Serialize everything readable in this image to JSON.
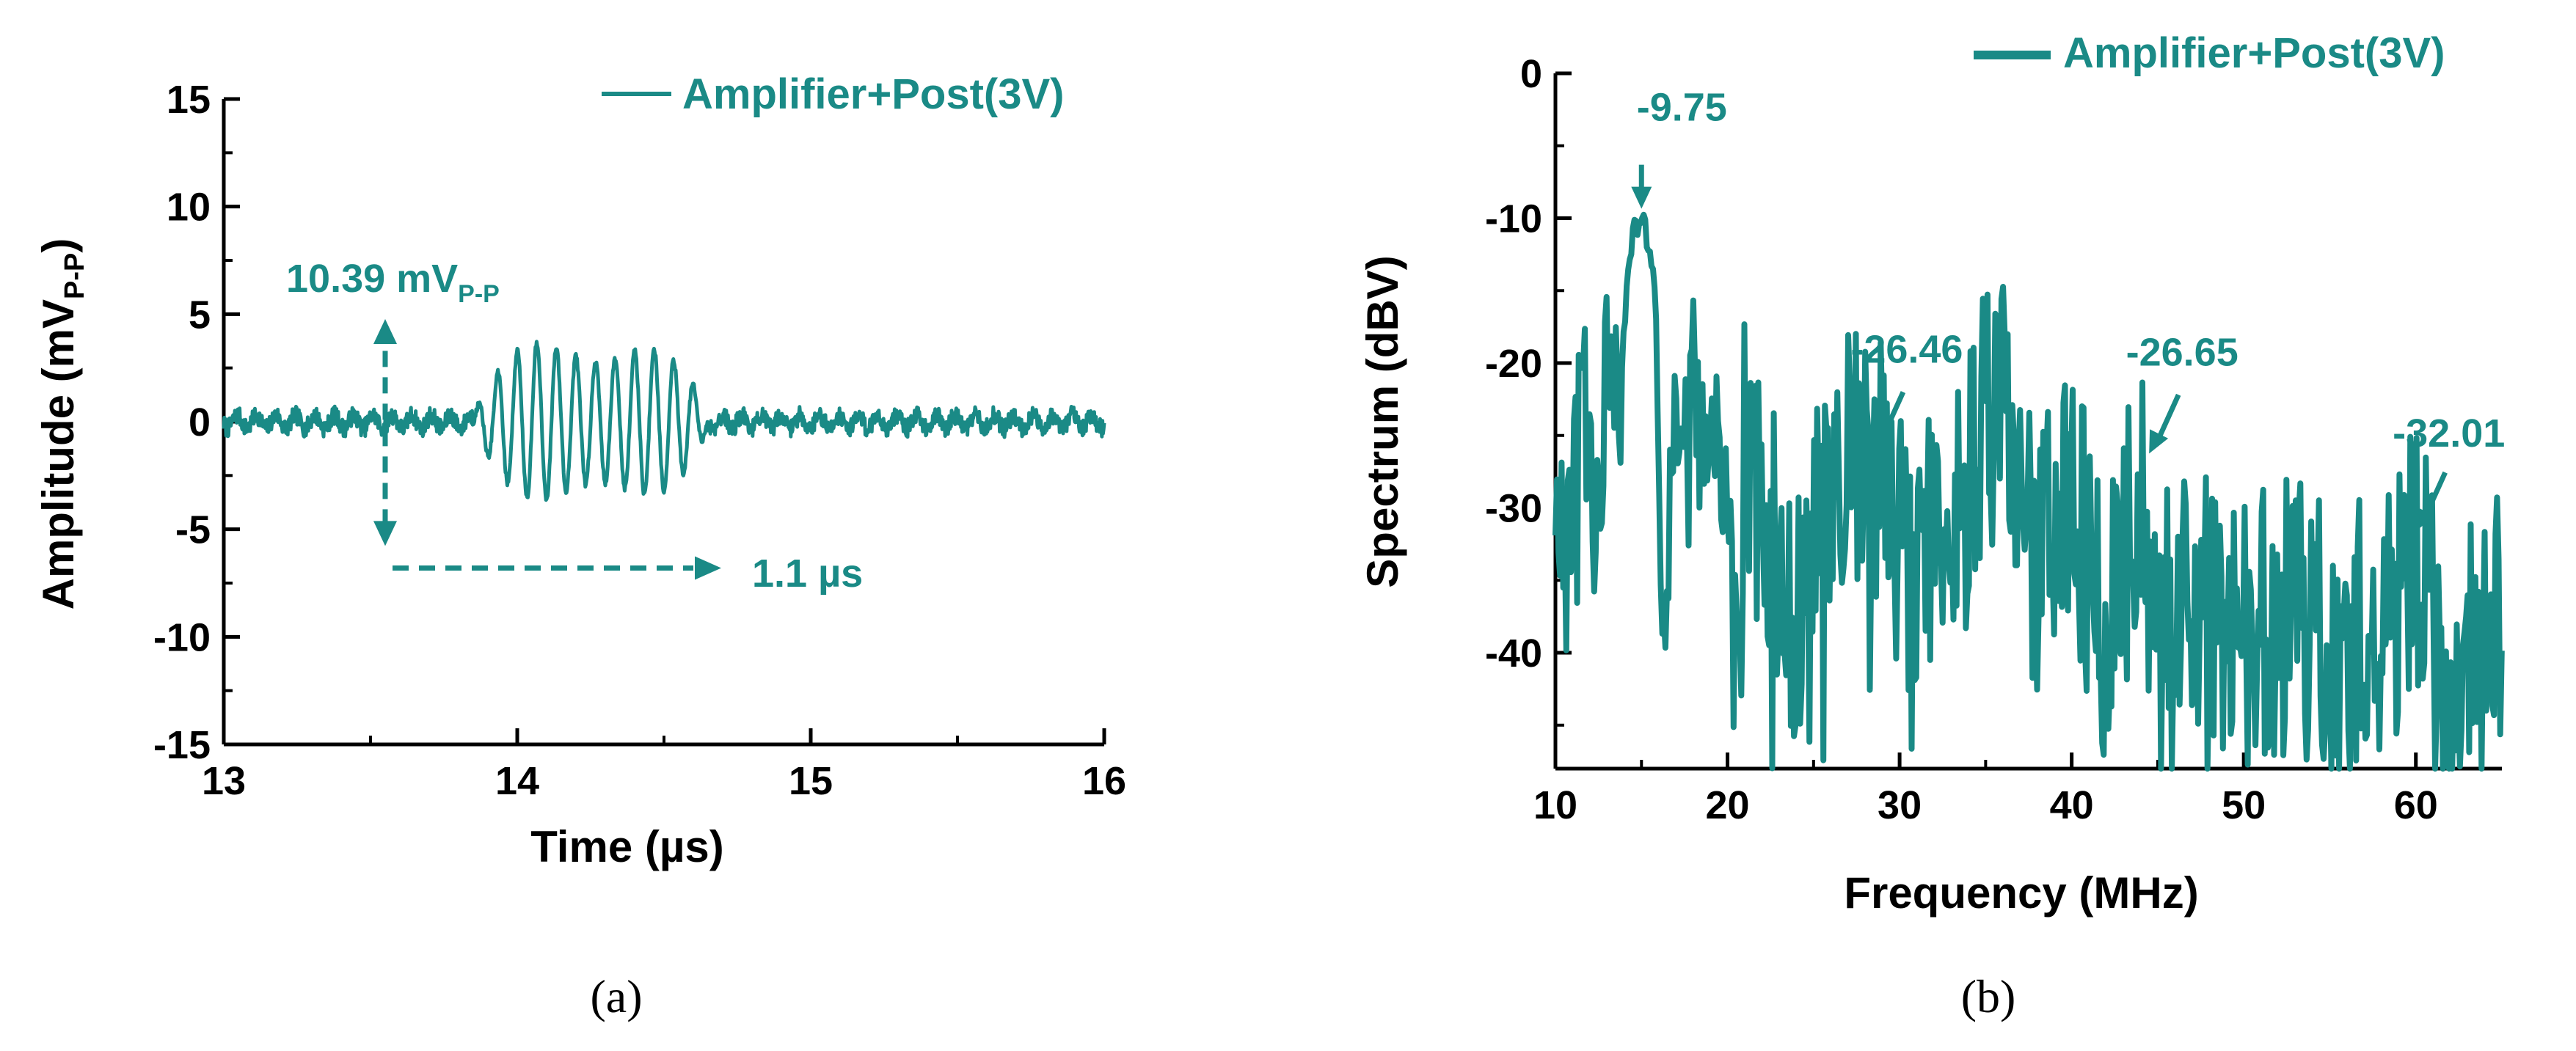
{
  "colors": {
    "series": "#1a8a86",
    "axis": "#000000"
  },
  "chart_data": [
    {
      "panel": "(a)",
      "type": "line",
      "xlabel": "Time (µs)",
      "ylabel_main": "Amplitude (mV",
      "ylabel_sub": "P-P",
      "ylabel_close": ")",
      "xlim": [
        13,
        16
      ],
      "ylim": [
        -15,
        15
      ],
      "x_ticks": [
        13,
        14,
        15,
        16
      ],
      "y_ticks": [
        -15,
        -10,
        -5,
        0,
        5,
        10,
        15
      ],
      "legend": "Amplifier+Post(3V)",
      "annotations": {
        "amplitude_main": "10.39 mV",
        "amplitude_sub": "P-P",
        "duration": "1.1 µs"
      },
      "annotation_markers": {
        "amplitude_arrow": {
          "x": 13.55,
          "y_from": -5.5,
          "y_to": 4.5
        },
        "duration_arrow": {
          "y": -6.8,
          "x_from": 13.55,
          "x_to": 14.65
        }
      },
      "series": [
        {
          "name": "Amplifier+Post(3V)",
          "signal_model": {
            "burst_start": 13.85,
            "burst_end": 14.65,
            "burst_freq_mhz": 15,
            "peak_amplitude": 4.7,
            "noise_amplitude": 0.6
          }
        }
      ]
    },
    {
      "panel": "(b)",
      "type": "line",
      "xlabel": "Frequency (MHz)",
      "ylabel": "Spectrum (dBV)",
      "xlim": [
        10,
        65
      ],
      "ylim": [
        -48,
        0
      ],
      "x_ticks": [
        10,
        20,
        30,
        40,
        50,
        60
      ],
      "y_ticks": [
        0,
        -10,
        -20,
        -30,
        -40
      ],
      "legend": "Amplifier+Post(3V)",
      "annotations": [
        {
          "text": "-9.75",
          "x": 15,
          "y": -9.75
        },
        {
          "text": "-26.46",
          "x": 28.5,
          "y": -26.46
        },
        {
          "text": "-26.65",
          "x": 44.5,
          "y": -26.65
        },
        {
          "text": "-32.01",
          "x": 60,
          "y": -32.01
        }
      ],
      "series": [
        {
          "name": "Amplifier+Post(3V)",
          "anchor_points": [
            [
              10,
              -22
            ],
            [
              10.5,
              -37
            ],
            [
              11.5,
              -21
            ],
            [
              12.5,
              -33
            ],
            [
              13,
              -17
            ],
            [
              13.7,
              -24
            ],
            [
              14.3,
              -12
            ],
            [
              15,
              -9.75
            ],
            [
              15.8,
              -14
            ],
            [
              16.2,
              -40
            ],
            [
              17,
              -25
            ],
            [
              18.2,
              -21
            ],
            [
              20,
              -28
            ],
            [
              20.5,
              -46
            ],
            [
              21,
              -26
            ],
            [
              22,
              -31
            ],
            [
              24,
              -37
            ],
            [
              26,
              -29
            ],
            [
              28.5,
              -26.46
            ],
            [
              30,
              -34
            ],
            [
              33,
              -31
            ],
            [
              36,
              -22
            ],
            [
              38,
              -34
            ],
            [
              40,
              -30
            ],
            [
              42,
              -38
            ],
            [
              44.5,
              -26.65
            ],
            [
              46,
              -38
            ],
            [
              48,
              -37
            ],
            [
              50,
              -38
            ],
            [
              52,
              -37
            ],
            [
              55,
              -40
            ],
            [
              58,
              -39
            ],
            [
              60,
              -32.01
            ],
            [
              62,
              -42
            ],
            [
              65,
              -38
            ]
          ]
        }
      ]
    }
  ],
  "panel_labels": {
    "a": "(a)",
    "b": "(b)"
  }
}
